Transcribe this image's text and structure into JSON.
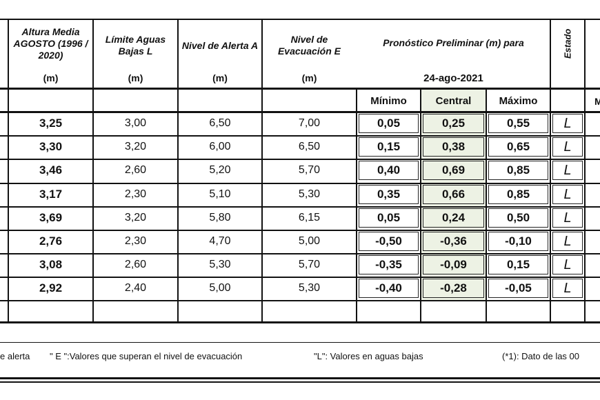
{
  "header": {
    "columns": [
      {
        "title": "Altura Media AGOSTO (1996 / 2020)",
        "unit": "(m)"
      },
      {
        "title": "Límite Aguas Bajas L",
        "unit": "(m)"
      },
      {
        "title": "Nivel de Alerta A",
        "unit": "(m)"
      },
      {
        "title": "Nivel de Evacuación E",
        "unit": "(m)"
      }
    ],
    "forecast": {
      "title": "Pronóstico Preliminar (m) para",
      "date": "24-ago-2021",
      "subcolumns": [
        "Mínimo",
        "Central",
        "Máximo"
      ]
    },
    "status": "Estado",
    "next_column_fragment": "M"
  },
  "table": {
    "rows": [
      [
        "3,25",
        "3,00",
        "6,50",
        "7,00",
        "0,05",
        "0,25",
        "0,55",
        "L"
      ],
      [
        "3,30",
        "3,20",
        "6,00",
        "6,50",
        "0,15",
        "0,38",
        "0,65",
        "L"
      ],
      [
        "3,46",
        "2,60",
        "5,20",
        "5,70",
        "0,40",
        "0,69",
        "0,85",
        "L"
      ],
      [
        "3,17",
        "2,30",
        "5,10",
        "5,30",
        "0,35",
        "0,66",
        "0,85",
        "L"
      ],
      [
        "3,69",
        "3,20",
        "5,80",
        "6,15",
        "0,05",
        "0,24",
        "0,50",
        "L"
      ],
      [
        "2,76",
        "2,30",
        "4,70",
        "5,00",
        "-0,50",
        "-0,36",
        "-0,10",
        "L"
      ],
      [
        "3,08",
        "2,60",
        "5,30",
        "5,70",
        "-0,35",
        "-0,09",
        "0,15",
        "L"
      ],
      [
        "2,92",
        "2,40",
        "5,00",
        "5,30",
        "-0,40",
        "-0,28",
        "-0,05",
        "L"
      ]
    ]
  },
  "footer": [
    "e alerta",
    "\" E \":Valores que superan el nivel de evacuación",
    "\"L\": Valores en aguas bajas",
    "(*1): Dato de las 00"
  ]
}
